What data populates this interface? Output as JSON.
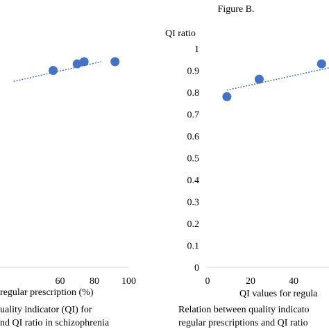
{
  "figure_b_label": "Figure B.",
  "left_panel": {
    "xlabel_fragment": "regular prescription (%)",
    "caption_lines": [
      "uality indicator (QI) for",
      "nd QI ratio in schizophrenia"
    ]
  },
  "right_panel": {
    "ylabel": "QI ratio",
    "xlabel_fragment": "QI values for regula",
    "caption_lines": [
      "Relation between quality indicato",
      "regular prescriptions and QI ratio"
    ]
  },
  "chart_data": [
    {
      "type": "scatter",
      "title": "",
      "xlabel": "regular prescription (%)",
      "ylabel": "",
      "x_ticks": [
        "60",
        "80",
        "100"
      ],
      "series": [
        {
          "x": [
            56,
            70,
            74,
            92
          ],
          "y": [
            0.9,
            0.93,
            0.94,
            0.94
          ]
        }
      ],
      "trendline": {
        "style": "dotted",
        "x": [
          33,
          84
        ],
        "y": [
          0.85,
          0.94
        ]
      },
      "grid": false,
      "color": "#4472C4"
    },
    {
      "type": "scatter",
      "title": "",
      "xlabel": "QI values for regula",
      "ylabel": "QI ratio",
      "ylim": [
        0,
        1
      ],
      "y_ticks": [
        "0",
        "0.1",
        "0.2",
        "0.3",
        "0.4",
        "0.5",
        "0.6",
        "0.7",
        "0.8",
        "0.9",
        "1"
      ],
      "x_ticks": [
        "0",
        "20",
        "40"
      ],
      "series": [
        {
          "x": [
            9,
            24,
            53
          ],
          "y": [
            0.78,
            0.86,
            0.93
          ]
        }
      ],
      "trendline": {
        "style": "dotted",
        "x": [
          9,
          65
        ],
        "y": [
          0.81,
          0.93
        ]
      },
      "grid": false,
      "color": "#4472C4"
    }
  ]
}
